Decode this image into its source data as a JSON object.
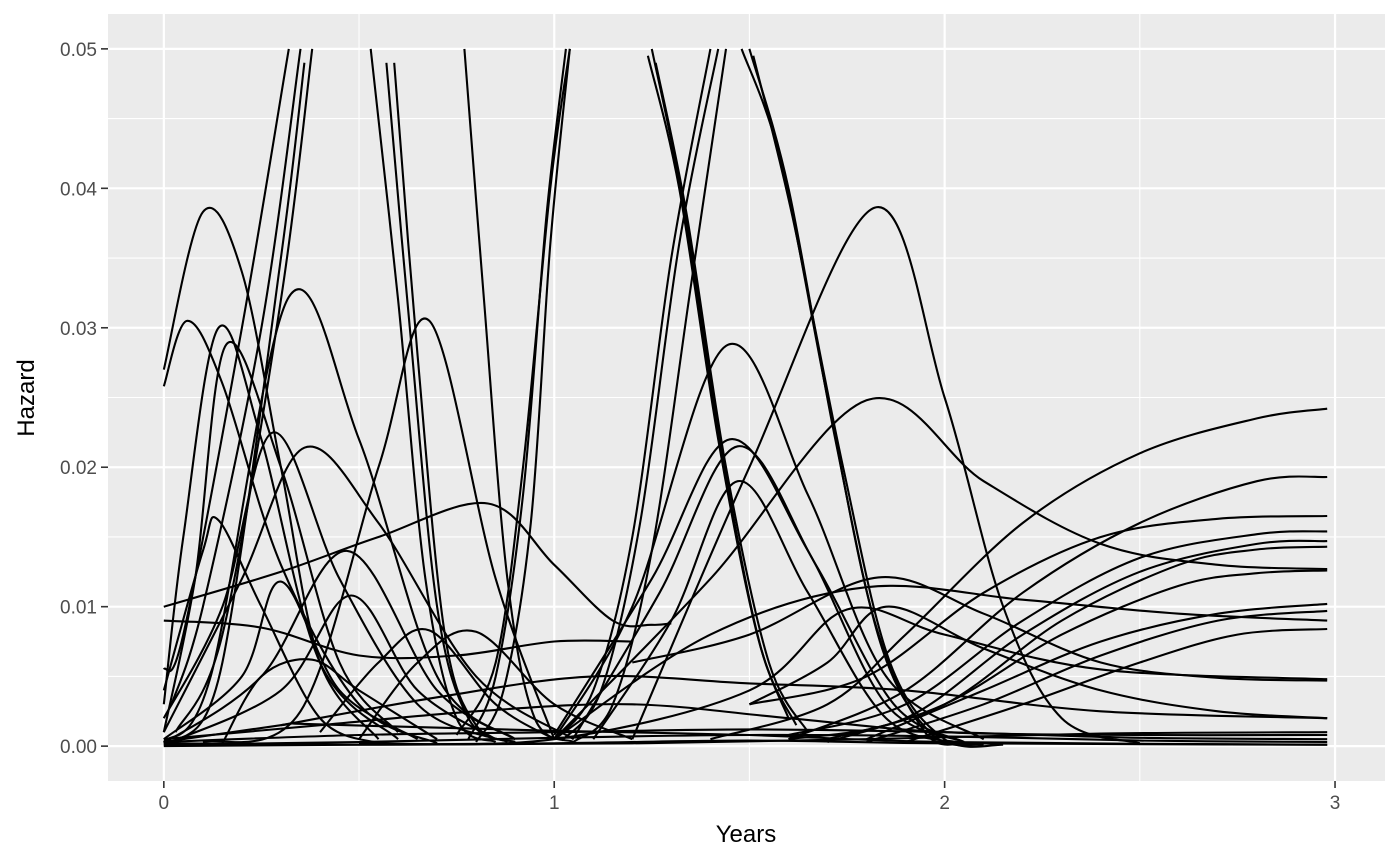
{
  "chart_data": {
    "type": "line",
    "title": "",
    "xlabel": "Years",
    "ylabel": "Hazard",
    "xlim": [
      -0.143,
      3.128
    ],
    "ylim": [
      -0.0025,
      0.0525
    ],
    "x_ticks": [
      0,
      1,
      2,
      3
    ],
    "x_tick_labels": [
      "0",
      "1",
      "2",
      "3"
    ],
    "y_ticks": [
      0,
      0.01,
      0.02,
      0.03,
      0.04,
      0.05
    ],
    "y_tick_labels": [
      "0.00",
      "0.01",
      "0.02",
      "0.03",
      "0.04",
      "0.05"
    ],
    "grid": true,
    "legend": "none",
    "colors": {
      "panel": "#ebebeb",
      "grid": "#ffffff",
      "line": "#000000"
    },
    "series": [
      {
        "x": [
          0,
          0.1,
          0.2,
          0.3,
          0.4,
          0.55
        ],
        "y": [
          0.027,
          0.0383,
          0.034,
          0.02,
          0.006,
          0.0005
        ]
      },
      {
        "x": [
          0,
          0.06,
          0.15,
          0.3,
          0.5,
          0.7
        ],
        "y": [
          0.0258,
          0.0305,
          0.026,
          0.013,
          0.003,
          0.0002
        ]
      },
      {
        "x": [
          0,
          0.05,
          0.14,
          0.25,
          0.4,
          0.6
        ],
        "y": [
          0.003,
          0.015,
          0.03,
          0.022,
          0.006,
          0.0005
        ]
      },
      {
        "x": [
          0,
          0.08,
          0.16,
          0.3,
          0.45,
          0.6
        ],
        "y": [
          0.001,
          0.012,
          0.0288,
          0.02,
          0.006,
          0.001
        ]
      },
      {
        "x": [
          0,
          0.12,
          0.32,
          0.5,
          0.7,
          0.9
        ],
        "y": [
          0.0003,
          0.005,
          0.0322,
          0.022,
          0.005,
          0.0005
        ]
      },
      {
        "x": [
          0,
          0.15,
          0.28,
          0.45,
          0.65,
          0.85
        ],
        "y": [
          0.002,
          0.01,
          0.0225,
          0.012,
          0.003,
          0.0005
        ]
      },
      {
        "x": [
          0,
          0.2,
          0.36,
          0.55,
          0.8,
          1.05
        ],
        "y": [
          0.001,
          0.012,
          0.0214,
          0.016,
          0.005,
          0.0005
        ]
      },
      {
        "x": [
          0,
          0.1,
          0.14,
          0.25,
          0.4,
          0.55
        ],
        "y": [
          0.004,
          0.014,
          0.0162,
          0.01,
          0.002,
          0.0002
        ]
      },
      {
        "x": [
          0,
          0.3,
          0.55,
          0.83,
          1.0,
          1.15,
          1.25,
          1.3
        ],
        "y": [
          0.01,
          0.0125,
          0.015,
          0.0174,
          0.013,
          0.009,
          0.0087,
          0.0088
        ]
      },
      {
        "x": [
          0,
          0.25,
          0.5,
          0.75,
          1.0,
          1.2
        ],
        "y": [
          0.009,
          0.0085,
          0.0065,
          0.0065,
          0.0075,
          0.0075
        ]
      },
      {
        "x": [
          0,
          0.2,
          0.3,
          0.45,
          0.65
        ],
        "y": [
          0.0005,
          0.005,
          0.0118,
          0.004,
          0.0005
        ]
      },
      {
        "x": [
          0,
          0.25,
          0.47,
          0.7,
          0.9
        ],
        "y": [
          0.0002,
          0.005,
          0.014,
          0.004,
          0.0005
        ]
      },
      {
        "x": [
          0,
          0.3,
          0.48,
          0.65,
          0.85
        ],
        "y": [
          0.0001,
          0.004,
          0.0108,
          0.004,
          0.0005
        ]
      },
      {
        "x": [
          0.1,
          0.35,
          0.55,
          0.68,
          0.85,
          1.0
        ],
        "y": [
          0.0003,
          0.0025,
          0.02,
          0.0305,
          0.012,
          0.0005
        ]
      },
      {
        "x": [
          0.15,
          0.25,
          0.38,
          0.5,
          0.7
        ],
        "y": [
          0.0002,
          0.005,
          0.0062,
          0.004,
          0.0005
        ]
      },
      {
        "x": [
          0.5,
          0.65,
          0.8,
          1.0,
          1.2
        ],
        "y": [
          0.0005,
          0.006,
          0.0082,
          0.003,
          0.0005
        ]
      },
      {
        "x": [
          0.4,
          0.55,
          0.68,
          0.85,
          1.0
        ],
        "y": [
          0.001,
          0.006,
          0.0083,
          0.003,
          0.0005
        ]
      },
      {
        "x": [
          0,
          0.05,
          0.2,
          0.32
        ],
        "y": [
          0.0055,
          0.008,
          0.03,
          0.05
        ]
      },
      {
        "x": [
          0.02,
          0.1,
          0.25,
          0.35
        ],
        "y": [
          0.003,
          0.01,
          0.03,
          0.05
        ]
      },
      {
        "x": [
          0.03,
          0.15,
          0.3,
          0.38
        ],
        "y": [
          0.001,
          0.008,
          0.032,
          0.05
        ]
      },
      {
        "x": [
          0.04,
          0.15,
          0.3,
          0.36
        ],
        "y": [
          0.0003,
          0.006,
          0.035,
          0.049
        ]
      },
      {
        "x": [
          0.53,
          0.6,
          0.67,
          0.75,
          0.85
        ],
        "y": [
          0.05,
          0.032,
          0.012,
          0.002,
          0.0003
        ]
      },
      {
        "x": [
          0.57,
          0.63,
          0.7,
          0.78,
          0.88
        ],
        "y": [
          0.049,
          0.03,
          0.01,
          0.002,
          0.0003
        ]
      },
      {
        "x": [
          0.59,
          0.65,
          0.72,
          0.8,
          0.9
        ],
        "y": [
          0.049,
          0.028,
          0.008,
          0.0015,
          0.0003
        ]
      },
      {
        "x": [
          0.77,
          0.82,
          0.88,
          0.95,
          1.05
        ],
        "y": [
          0.05,
          0.032,
          0.012,
          0.002,
          0.0003
        ]
      },
      {
        "x": [
          0.78,
          0.85,
          0.92,
          0.98,
          1.03
        ],
        "y": [
          0.0005,
          0.005,
          0.018,
          0.038,
          0.05
        ]
      },
      {
        "x": [
          0.8,
          0.87,
          0.94,
          0.99,
          1.04
        ],
        "y": [
          0.0003,
          0.004,
          0.016,
          0.036,
          0.05
        ]
      },
      {
        "x": [
          0.75,
          0.85,
          0.92,
          0.99,
          1.04
        ],
        "y": [
          0.0008,
          0.006,
          0.02,
          0.04,
          0.05
        ]
      },
      {
        "x": [
          1.24,
          1.32,
          1.42,
          1.52,
          1.6
        ],
        "y": [
          0.0495,
          0.04,
          0.022,
          0.008,
          0.002
        ]
      },
      {
        "x": [
          1.25,
          1.33,
          1.43,
          1.53,
          1.62
        ],
        "y": [
          0.05,
          0.039,
          0.021,
          0.007,
          0.0015
        ]
      },
      {
        "x": [
          1.26,
          1.34,
          1.44,
          1.55,
          1.65
        ],
        "y": [
          0.049,
          0.038,
          0.02,
          0.006,
          0.001
        ]
      },
      {
        "x": [
          1.0,
          1.1,
          1.2,
          1.3,
          1.4
        ],
        "y": [
          0.0005,
          0.004,
          0.015,
          0.035,
          0.05
        ]
      },
      {
        "x": [
          1.02,
          1.12,
          1.22,
          1.32,
          1.42
        ],
        "y": [
          0.0004,
          0.004,
          0.016,
          0.036,
          0.05
        ]
      },
      {
        "x": [
          1.05,
          1.15,
          1.25,
          1.35,
          1.44
        ],
        "y": [
          0.0003,
          0.003,
          0.014,
          0.033,
          0.05
        ]
      },
      {
        "x": [
          1.48,
          1.58,
          1.7,
          1.82,
          1.95,
          2.05
        ],
        "y": [
          0.05,
          0.042,
          0.025,
          0.009,
          0.001,
          0.0002
        ]
      },
      {
        "x": [
          1.5,
          1.6,
          1.72,
          1.84,
          1.97,
          2.1
        ],
        "y": [
          0.05,
          0.04,
          0.022,
          0.007,
          0.0008,
          0.0001
        ]
      },
      {
        "x": [
          1.51,
          1.61,
          1.74,
          1.86,
          2.0,
          2.15
        ],
        "y": [
          0.0495,
          0.038,
          0.02,
          0.006,
          0.0005,
          0.0001
        ]
      },
      {
        "x": [
          1.0,
          1.2,
          1.44,
          1.65,
          1.85,
          2.1
        ],
        "y": [
          0.0005,
          0.01,
          0.0287,
          0.018,
          0.005,
          0.0005
        ]
      },
      {
        "x": [
          1.0,
          1.25,
          1.45,
          1.65,
          1.85,
          2.05
        ],
        "y": [
          0.0008,
          0.012,
          0.022,
          0.014,
          0.003,
          0.0003
        ]
      },
      {
        "x": [
          1.05,
          1.27,
          1.47,
          1.67,
          1.87,
          2.05
        ],
        "y": [
          0.0006,
          0.011,
          0.0215,
          0.013,
          0.003,
          0.0003
        ]
      },
      {
        "x": [
          1.1,
          1.3,
          1.47,
          1.65,
          1.85,
          2.05
        ],
        "y": [
          0.0005,
          0.009,
          0.019,
          0.011,
          0.002,
          0.0002
        ]
      },
      {
        "x": [
          1.2,
          1.5,
          1.82,
          2.0,
          2.15,
          2.3,
          2.5
        ],
        "y": [
          0.0005,
          0.02,
          0.0386,
          0.025,
          0.01,
          0.002,
          0.0002
        ]
      },
      {
        "x": [
          1.0,
          1.4,
          1.8,
          2.1,
          2.4,
          2.7,
          2.98
        ],
        "y": [
          0.0005,
          0.012,
          0.0248,
          0.019,
          0.0145,
          0.013,
          0.0127
        ]
      },
      {
        "x": [
          1.2,
          1.5,
          1.83,
          2.1,
          2.4,
          2.7,
          2.98
        ],
        "y": [
          0.006,
          0.008,
          0.0121,
          0.0095,
          0.006,
          0.0049,
          0.0047
        ]
      },
      {
        "x": [
          1.0,
          1.4,
          1.8,
          2.2,
          2.6,
          2.98
        ],
        "y": [
          0.0005,
          0.008,
          0.0114,
          0.0105,
          0.0095,
          0.009
        ]
      },
      {
        "x": [
          1.5,
          1.7,
          1.85,
          2.1,
          2.4,
          2.7,
          2.98
        ],
        "y": [
          0.003,
          0.006,
          0.01,
          0.007,
          0.004,
          0.0025,
          0.002
        ]
      },
      {
        "x": [
          1.4,
          1.7,
          1.9,
          2.2,
          2.5,
          2.8,
          2.98
        ],
        "y": [
          0.0005,
          0.003,
          0.008,
          0.016,
          0.021,
          0.0235,
          0.0242
        ]
      },
      {
        "x": [
          1.6,
          1.9,
          2.2,
          2.5,
          2.8,
          2.98
        ],
        "y": [
          0.0005,
          0.004,
          0.011,
          0.016,
          0.019,
          0.0193
        ]
      },
      {
        "x": [
          1.5,
          1.8,
          2.1,
          2.4,
          2.7,
          2.98
        ],
        "y": [
          0.003,
          0.005,
          0.011,
          0.015,
          0.0163,
          0.0165
        ]
      },
      {
        "x": [
          1.6,
          1.9,
          2.2,
          2.5,
          2.8,
          2.98
        ],
        "y": [
          0.0008,
          0.003,
          0.009,
          0.0135,
          0.0152,
          0.0154
        ]
      },
      {
        "x": [
          1.6,
          1.9,
          2.2,
          2.5,
          2.8,
          2.98
        ],
        "y": [
          0.0005,
          0.002,
          0.008,
          0.0125,
          0.0145,
          0.0147
        ]
      },
      {
        "x": [
          1.7,
          2.0,
          2.3,
          2.6,
          2.8,
          2.98
        ],
        "y": [
          0.0005,
          0.003,
          0.009,
          0.013,
          0.0141,
          0.0143
        ]
      },
      {
        "x": [
          1.7,
          2.0,
          2.3,
          2.6,
          2.8,
          2.98
        ],
        "y": [
          0.0003,
          0.003,
          0.008,
          0.0115,
          0.0124,
          0.0126
        ]
      },
      {
        "x": [
          1.8,
          2.1,
          2.4,
          2.7,
          2.98
        ],
        "y": [
          0.0005,
          0.004,
          0.0075,
          0.0095,
          0.0102
        ]
      },
      {
        "x": [
          1.8,
          2.1,
          2.4,
          2.7,
          2.98
        ],
        "y": [
          0.0003,
          0.003,
          0.0065,
          0.009,
          0.0097
        ]
      },
      {
        "x": [
          1.9,
          2.2,
          2.5,
          2.75,
          2.98
        ],
        "y": [
          0.0003,
          0.003,
          0.006,
          0.008,
          0.0084
        ]
      },
      {
        "x": [
          0.5,
          1.0,
          1.5,
          1.75,
          2.0,
          2.4,
          2.98
        ],
        "y": [
          0.0002,
          0.0005,
          0.004,
          0.0098,
          0.008,
          0.0055,
          0.0048
        ]
      },
      {
        "x": [
          0.3,
          0.7,
          1.1,
          1.5,
          1.9,
          2.4,
          2.98
        ],
        "y": [
          0.0015,
          0.0035,
          0.005,
          0.0045,
          0.004,
          0.0025,
          0.002
        ]
      },
      {
        "x": [
          0,
          0.4,
          0.8,
          1.2,
          1.6,
          2.0,
          2.5,
          2.98
        ],
        "y": [
          0.0005,
          0.0015,
          0.0025,
          0.003,
          0.002,
          0.001,
          0.0008,
          0.0008
        ]
      },
      {
        "x": [
          0,
          0.5,
          1.0,
          1.5,
          2.0,
          2.5,
          2.98
        ],
        "y": [
          0.0003,
          0.0008,
          0.001,
          0.0012,
          0.001,
          0.0006,
          0.0005
        ]
      },
      {
        "x": [
          0,
          0.5,
          1.0,
          1.5,
          2.0,
          2.5,
          2.98
        ],
        "y": [
          0.0001,
          0.0003,
          0.0006,
          0.0008,
          0.0007,
          0.0004,
          0.0003
        ]
      },
      {
        "x": [
          0,
          0.6,
          1.2,
          1.8,
          2.4,
          2.98
        ],
        "y": [
          0.0002,
          0.0001,
          0.0002,
          0.0005,
          0.0009,
          0.001
        ]
      },
      {
        "x": [
          0,
          0.3,
          0.35,
          0.6,
          1.0,
          1.5,
          2.0,
          2.98
        ],
        "y": [
          0.0003,
          0.0015,
          0.0016,
          0.0014,
          0.0011,
          0.0008,
          0.0003,
          0.0001
        ]
      },
      {
        "x": [
          0,
          0.5,
          1.0,
          1.5,
          2.0,
          2.98
        ],
        "y": [
          0,
          0.0001,
          0.0002,
          0.0004,
          0.0002,
          0.0001
        ]
      }
    ]
  }
}
